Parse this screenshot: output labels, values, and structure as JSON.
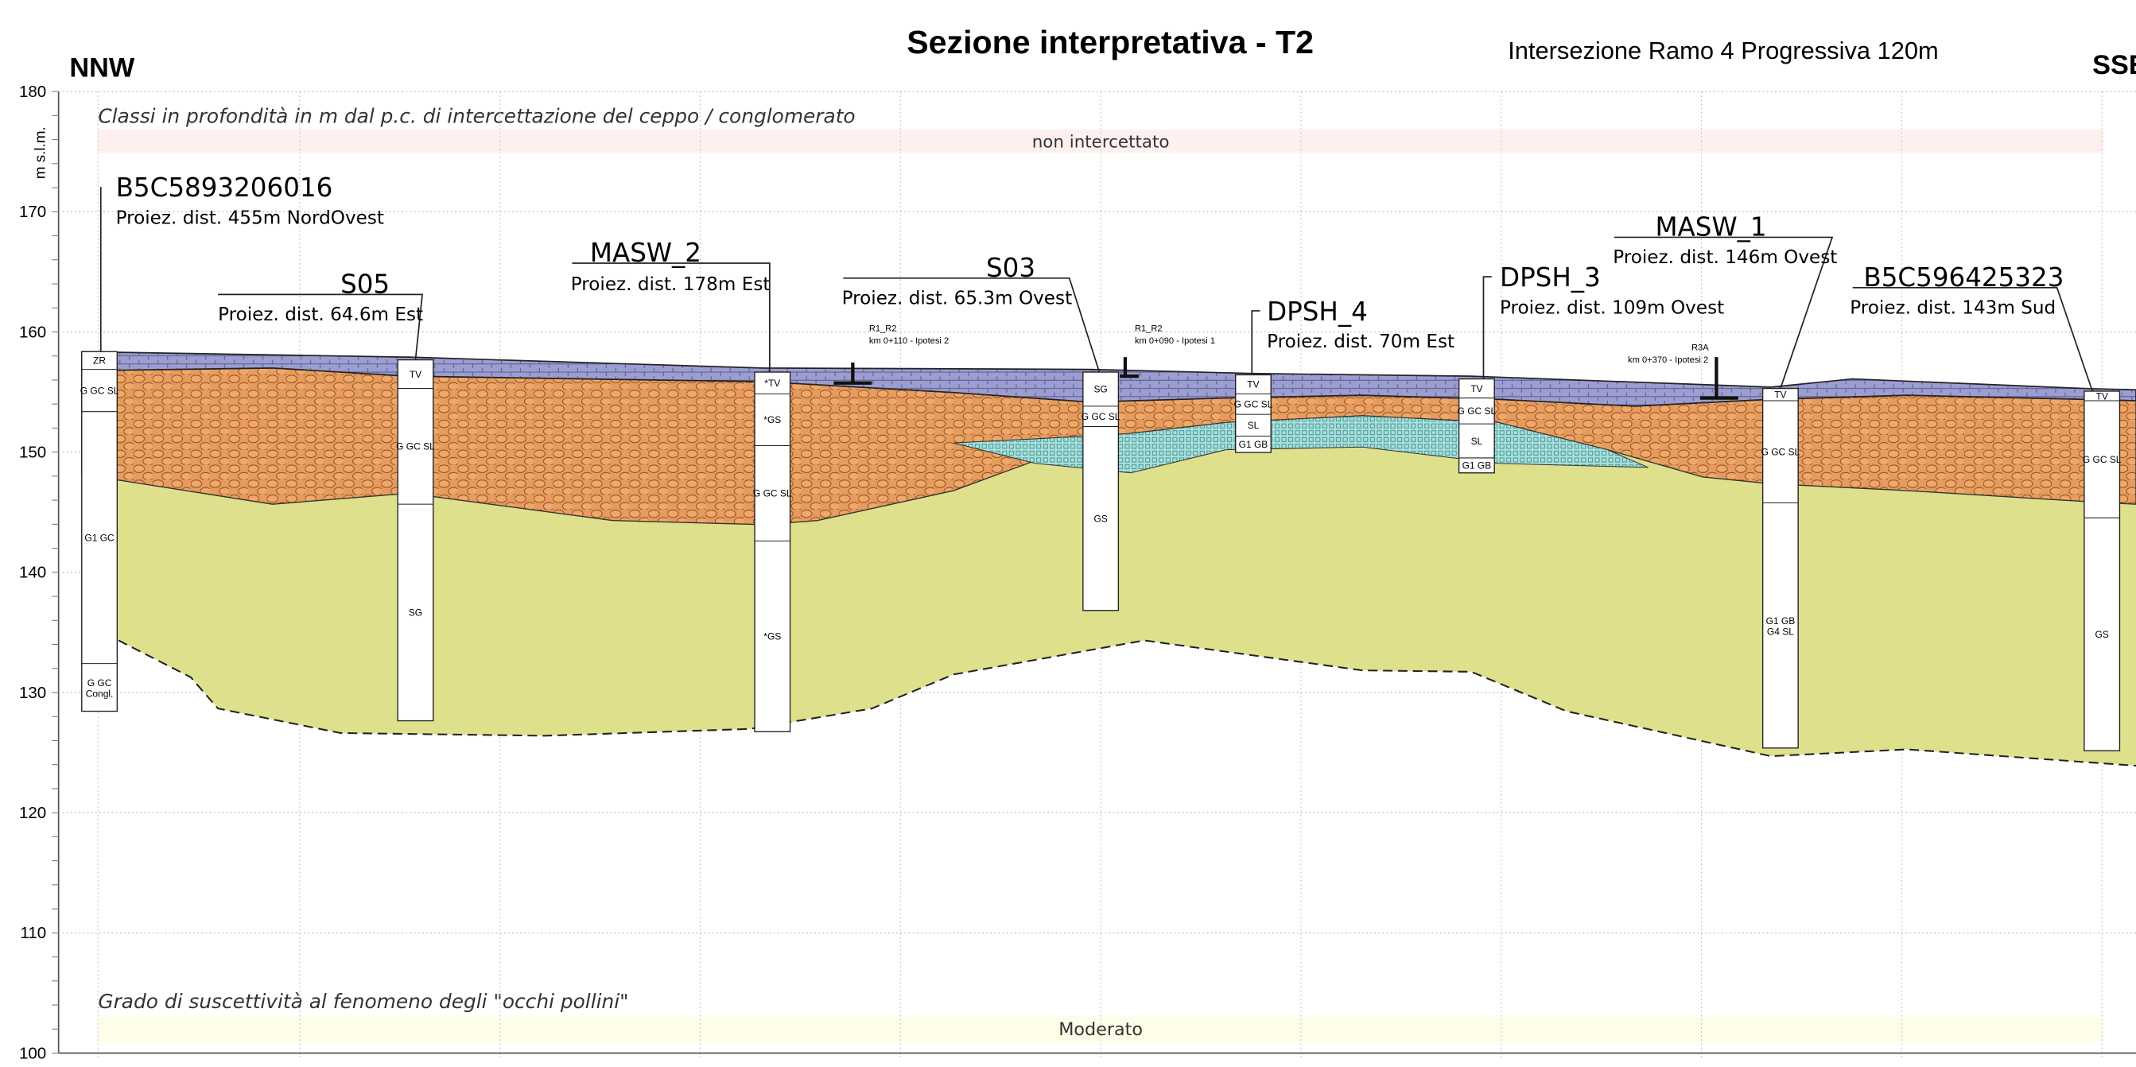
{
  "title": "Sezione interpretativa - T2",
  "subtitle": "Intersezione Ramo 4 Progressiva 120m",
  "direction_left": "NNW",
  "direction_right": "SSE",
  "axis": {
    "label": "m s.l.m.",
    "lim": [
      100,
      180
    ],
    "ticks": [
      180,
      170,
      160,
      150,
      140,
      130,
      120,
      110,
      100
    ]
  },
  "top_band": {
    "heading": "Classi in profondità in m dal p.c. di intercettazione del ceppo / conglomerato",
    "value": "non intercettato"
  },
  "bottom_band": {
    "heading": "Grado di suscettività al fenomeno degli \"occhi pollini\"",
    "value": "Moderato"
  },
  "boreholes": [
    {
      "name": "B5C5893206016",
      "distance": "Proiez. dist. 455m NordOvest",
      "layers": [
        "ZR",
        "G GC SL",
        "G1 GC",
        [
          "G GC",
          "Congl."
        ]
      ]
    },
    {
      "name": "S05",
      "distance": "Proiez. dist. 64.6m Est",
      "layers": [
        "TV",
        "G GC SL",
        "SG"
      ]
    },
    {
      "name": "MASW_2",
      "distance": "Proiez. dist. 178m Est",
      "layers": [
        "*TV",
        "*GS",
        "G GC SL",
        "*GS"
      ]
    },
    {
      "name": "S03",
      "distance": "Proiez. dist. 65.3m Ovest",
      "layers": [
        "SG",
        "G GC SL",
        "GS"
      ]
    },
    {
      "name": "DPSH_4",
      "distance": "Proiez. dist. 70m Est",
      "layers": [
        "TV",
        "G GC SL",
        "SL",
        "G1 GB"
      ]
    },
    {
      "name": "DPSH_3",
      "distance": "Proiez. dist. 109m Ovest",
      "layers": [
        "TV",
        "G GC SL",
        "SL",
        "G1 GB"
      ]
    },
    {
      "name": "MASW_1",
      "distance": "Proiez. dist. 146m Ovest",
      "layers": [
        "TV",
        "G GC SL",
        [
          "G1 GB",
          "G4 SL"
        ]
      ]
    },
    {
      "name": "B5C596425323",
      "distance": "Proiez. dist. 143m Sud",
      "layers": [
        "TV",
        "G GC SL",
        "GS"
      ]
    }
  ],
  "annotations": [
    {
      "name": "R1_R2",
      "text": "km 0+110 - Ipotesi 2"
    },
    {
      "name": "R1_R2",
      "text": "km 0+090 - Ipotesi 1"
    },
    {
      "name": "R3A",
      "text": "km 0+370 - Ipotesi 2"
    }
  ]
}
